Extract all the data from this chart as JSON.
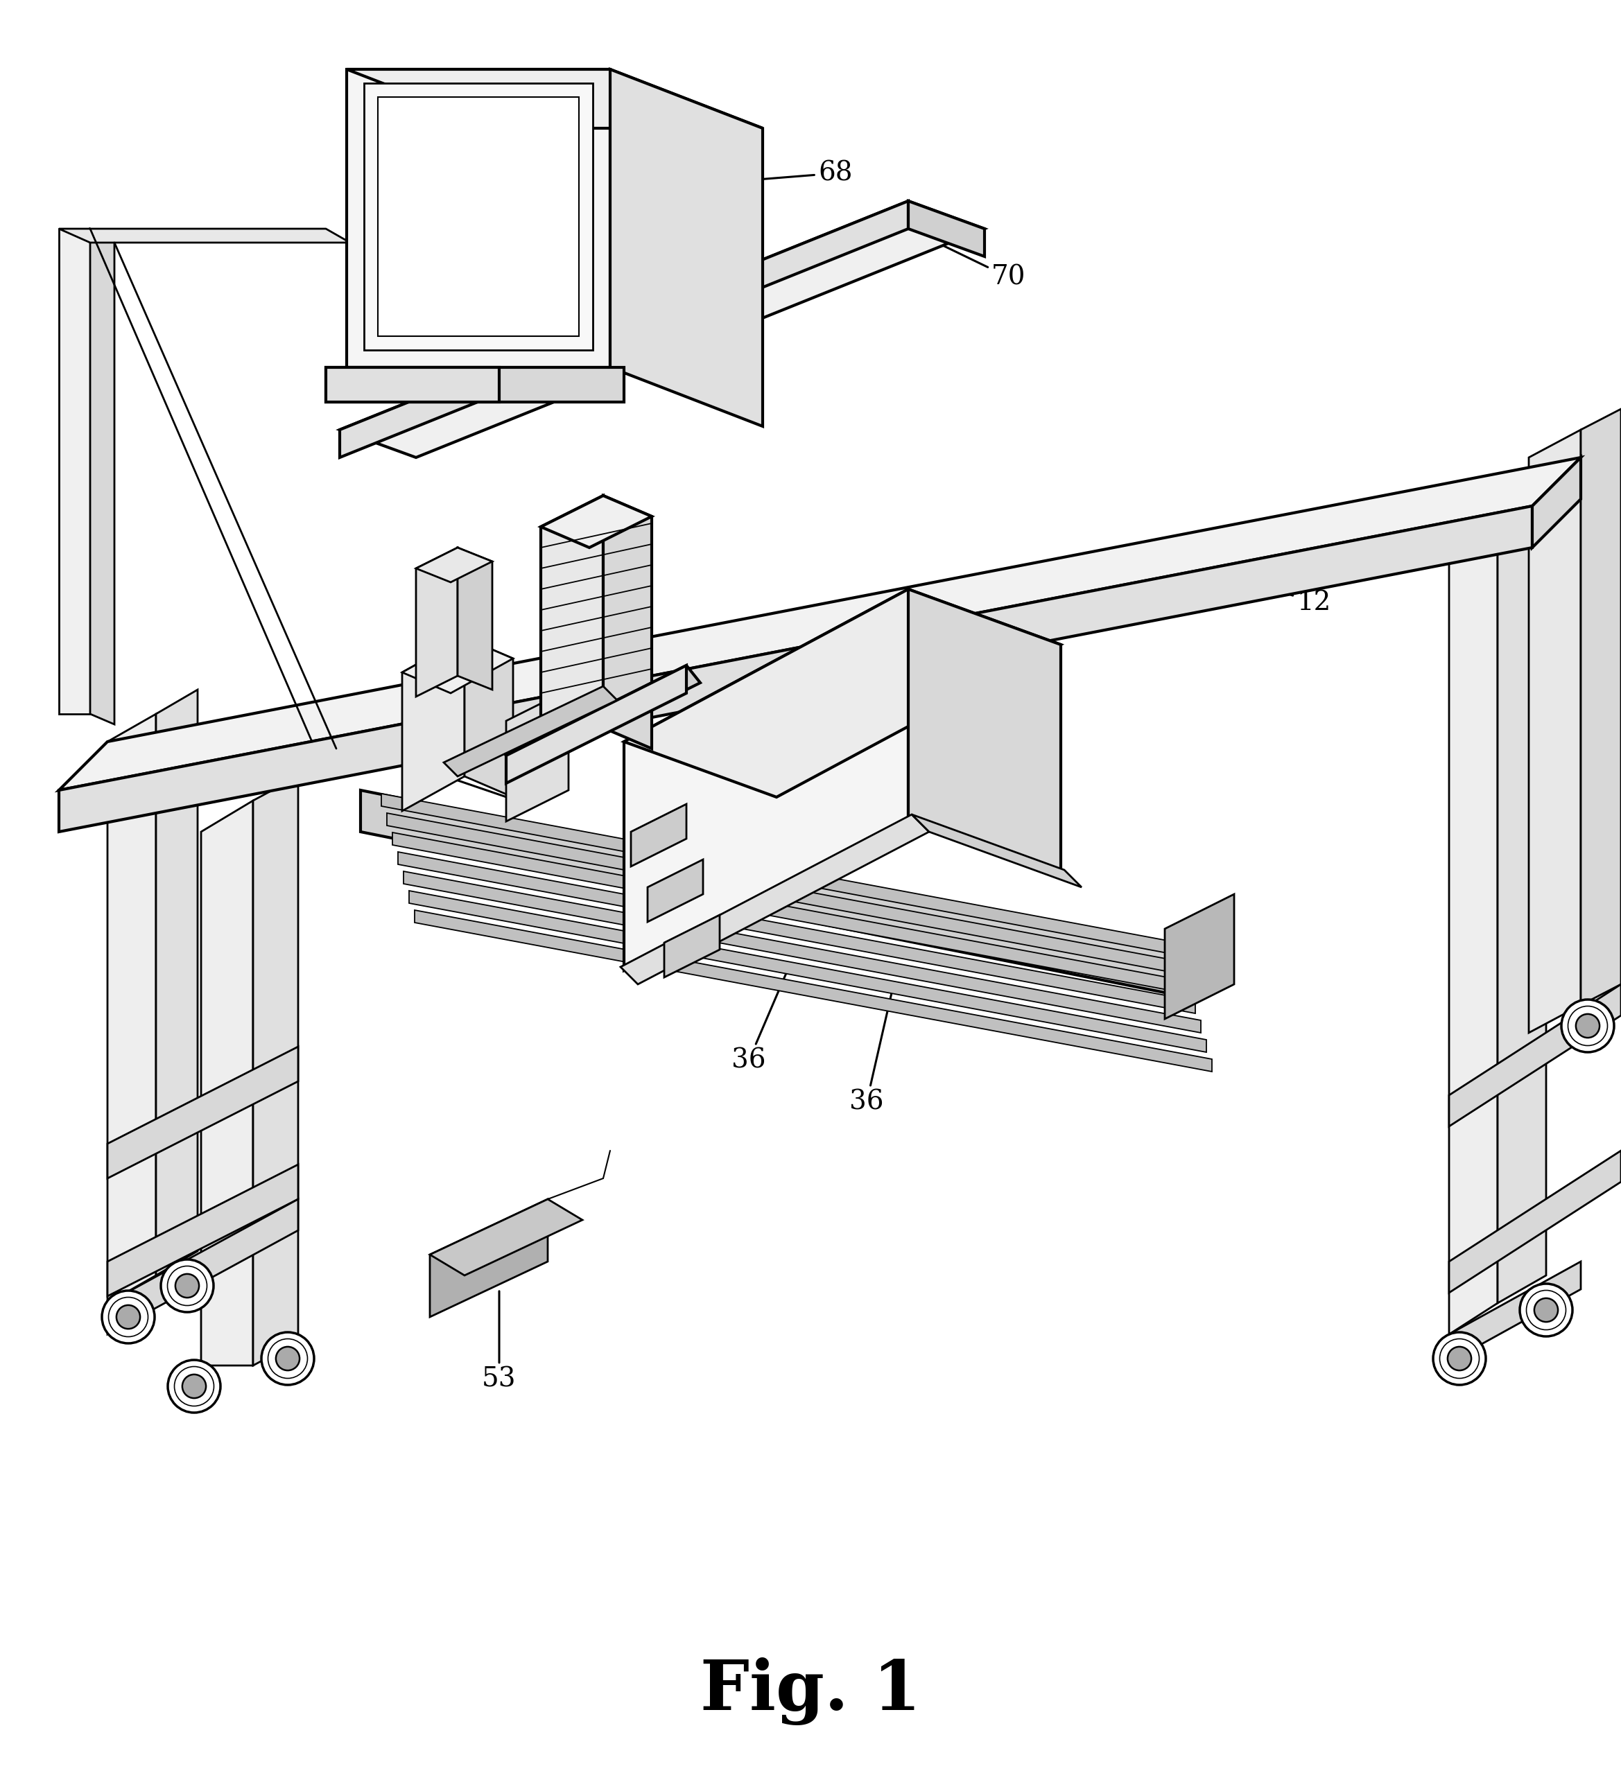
{
  "background_color": "#ffffff",
  "fig_width": 23.38,
  "fig_height": 25.55,
  "fig_label": "Fig. 1",
  "label_fontsize": 28
}
